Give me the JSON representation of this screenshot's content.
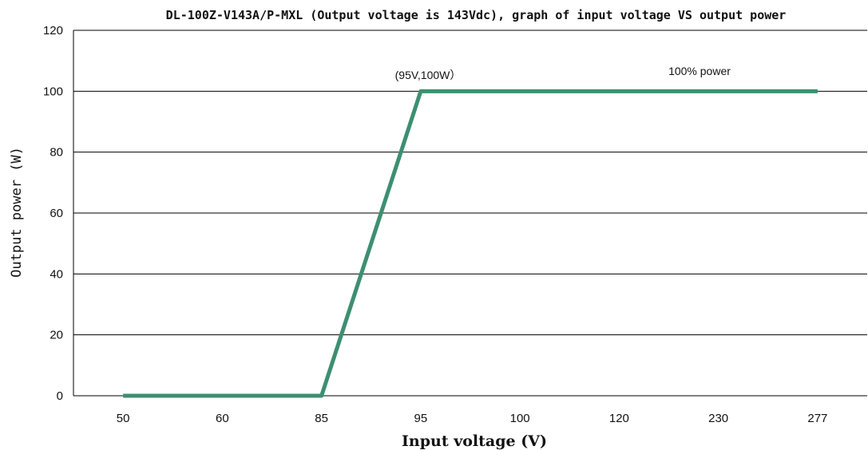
{
  "chart_data": {
    "type": "line",
    "title": "DL-100Z-V143A/P-MXL (Output voltage is 143Vdc), graph of input voltage VS output power",
    "xlabel": "Input voltage (V)",
    "ylabel": "Output power (W)",
    "categories": [
      "50",
      "60",
      "85",
      "95",
      "100",
      "120",
      "230",
      "277"
    ],
    "series": [
      {
        "values": [
          0,
          0,
          0,
          100,
          100,
          100,
          100,
          100
        ]
      }
    ],
    "ylim": [
      0,
      120
    ],
    "yticks": [
      "0",
      "20",
      "40",
      "60",
      "80",
      "100",
      "120"
    ],
    "grid": "horizontal",
    "annotations": [
      "(95V,100W）",
      "100% power"
    ],
    "colors": {
      "series": "#3d8f72",
      "grid": "#000000"
    }
  }
}
